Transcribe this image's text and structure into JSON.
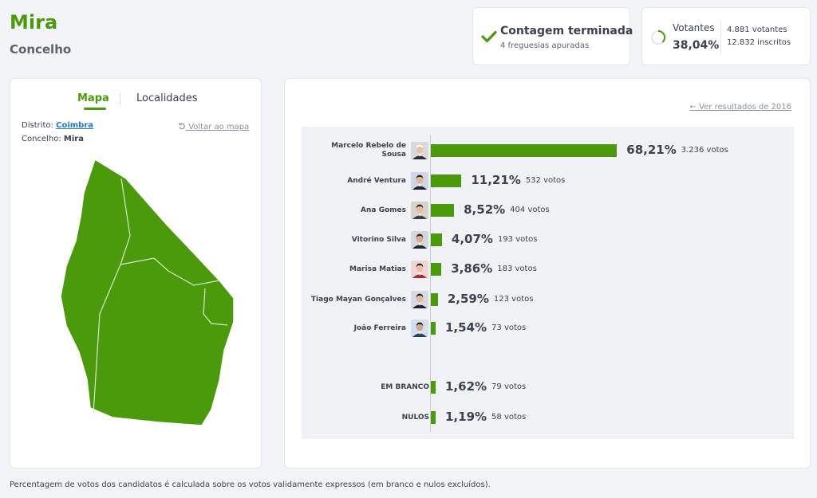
{
  "header": {
    "title": "Mira",
    "subtitle": "Concelho"
  },
  "status": {
    "title": "Contagem terminada",
    "subtitle": "4 freguesias apuradas",
    "icon": "check-icon"
  },
  "voters": {
    "label": "Votantes",
    "percent": "38,04%",
    "voters_text": "4.881 votantes",
    "registered_text": "12.832 inscritos",
    "ring_fraction": 0.3804
  },
  "map_panel": {
    "tab_map": "Mapa",
    "tab_places": "Localidades",
    "district_label": "Distrito:",
    "district_value": "Coimbra",
    "municipality_label": "Concelho:",
    "municipality_value": "Mira",
    "back_link": "Voltar ao mapa",
    "map_color": "#4a9a0c"
  },
  "results": {
    "prev_link": "Ver resultados de 2016",
    "candidates": [
      {
        "name": "Marcelo Rebelo de Sousa",
        "percent_text": "68,21%",
        "votes_text": "3.236 votos",
        "share": 68.21
      },
      {
        "name": "André Ventura",
        "percent_text": "11,21%",
        "votes_text": "532 votos",
        "share": 11.21
      },
      {
        "name": "Ana Gomes",
        "percent_text": "8,52%",
        "votes_text": "404 votos",
        "share": 8.52
      },
      {
        "name": "Vitorino Silva",
        "percent_text": "4,07%",
        "votes_text": "193 votos",
        "share": 4.07
      },
      {
        "name": "Marisa Matias",
        "percent_text": "3,86%",
        "votes_text": "183 votos",
        "share": 3.86
      },
      {
        "name": "Tiago Mayan Gonçalves",
        "percent_text": "2,59%",
        "votes_text": "123 votos",
        "share": 2.59
      },
      {
        "name": "João Ferreira",
        "percent_text": "1,54%",
        "votes_text": "73 votos",
        "share": 1.54
      }
    ],
    "other": [
      {
        "name": "EM BRANCO",
        "percent_text": "1,62%",
        "votes_text": "79 votos",
        "share": 1.62
      },
      {
        "name": "NULOS",
        "percent_text": "1,19%",
        "votes_text": "58 votos",
        "share": 1.19
      }
    ],
    "bar_color": "#4a9a0c"
  },
  "footnote": "Percentagem de votos dos candidatos é calculada sobre os votos validamente expressos (em branco e nulos excluídos)."
}
